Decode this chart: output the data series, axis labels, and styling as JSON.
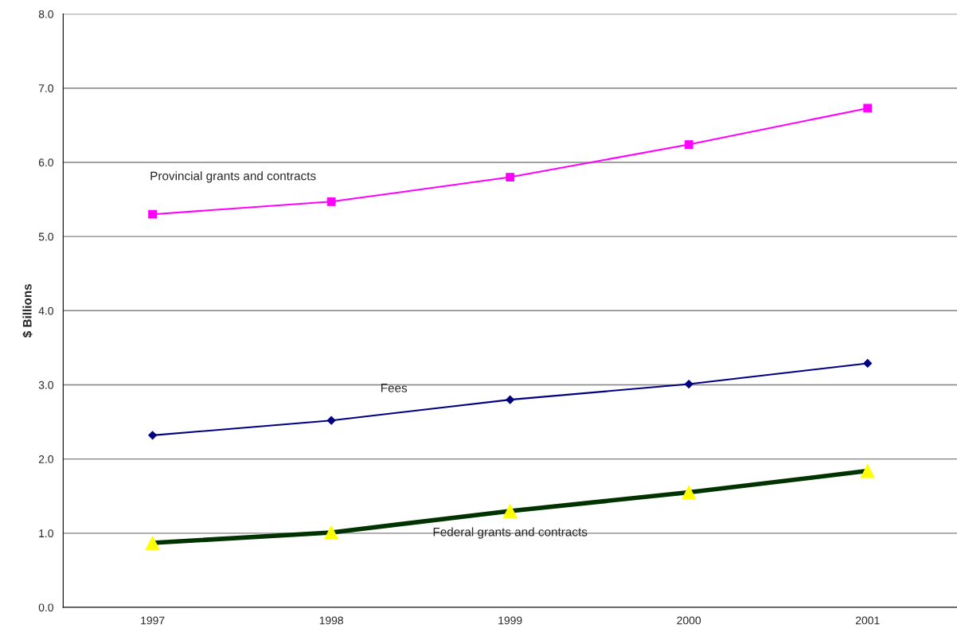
{
  "chart_data": {
    "type": "line",
    "ylabel": "$ Billions",
    "categories": [
      "1997",
      "1998",
      "1999",
      "2000",
      "2001"
    ],
    "series": [
      {
        "name": "Provincial grants and contracts",
        "color": "#ff00ff",
        "marker": "square",
        "values": [
          5.3,
          5.47,
          5.8,
          6.24,
          6.73
        ]
      },
      {
        "name": "Fees",
        "color": "#000080",
        "marker": "diamond",
        "values": [
          2.32,
          2.52,
          2.8,
          3.01,
          3.29
        ]
      },
      {
        "name": "Federal grants and contracts",
        "color": "#003300",
        "marker": "triangle",
        "values": [
          0.87,
          1.01,
          1.3,
          1.55,
          1.84
        ]
      }
    ],
    "ylim": [
      0,
      8
    ],
    "yticks": [
      {
        "value": 0,
        "label": "0.0"
      },
      {
        "value": 1,
        "label": "1.0"
      },
      {
        "value": 2,
        "label": "2.0"
      },
      {
        "value": 3,
        "label": "3.0"
      },
      {
        "value": 4,
        "label": "4.0"
      },
      {
        "value": 5,
        "label": "5.0"
      },
      {
        "value": 6,
        "label": "6.0"
      },
      {
        "value": 7,
        "label": "7.0"
      },
      {
        "value": 8,
        "label": "8.0"
      }
    ],
    "grid": "y",
    "legend": false
  }
}
